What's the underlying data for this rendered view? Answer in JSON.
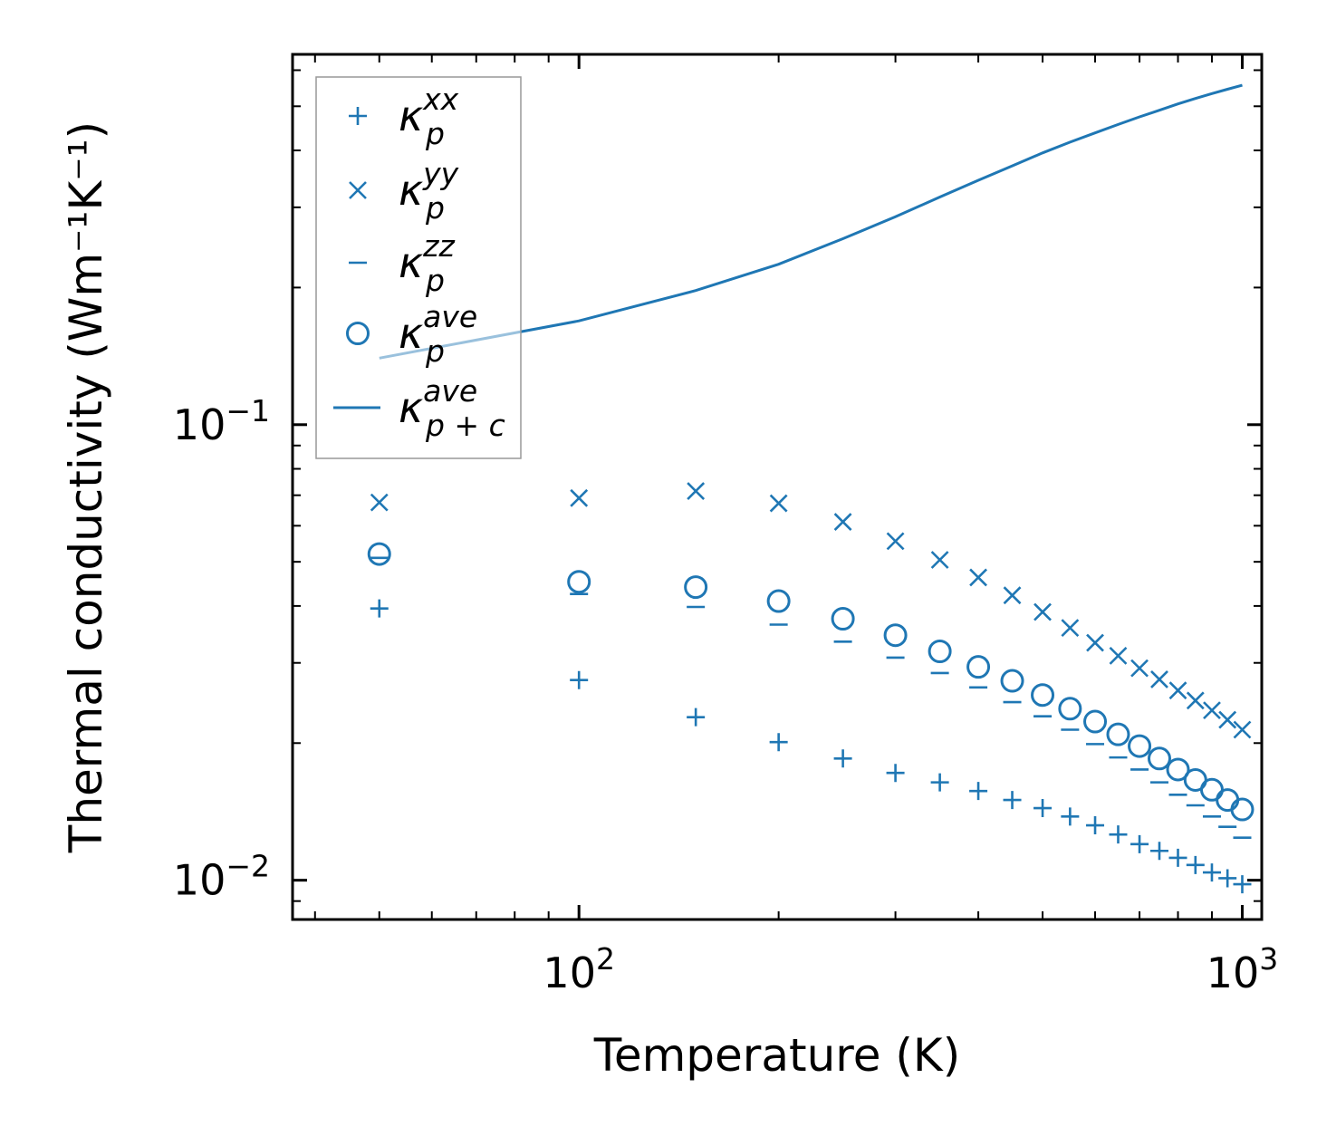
{
  "chart_data": {
    "type": "scatter",
    "title": "",
    "xlabel": "Temperature (K)",
    "ylabel": "Thermal conductivity (Wm⁻¹K⁻¹)",
    "xscale": "log",
    "yscale": "log",
    "xlim": [
      37,
      1070
    ],
    "ylim": [
      0.0082,
      0.65
    ],
    "grid": false,
    "legend_position": "top-left",
    "x_tick_labels": [
      {
        "value": 100,
        "base": "10",
        "exp": "2"
      },
      {
        "value": 1000,
        "base": "10",
        "exp": "3"
      }
    ],
    "y_tick_labels": [
      {
        "value": 0.1,
        "base": "10",
        "exp": "−1"
      },
      {
        "value": 0.01,
        "base": "10",
        "exp": "−2"
      }
    ],
    "x": [
      50,
      100,
      150,
      200,
      250,
      300,
      350,
      400,
      450,
      500,
      550,
      600,
      650,
      700,
      750,
      800,
      850,
      900,
      950,
      1000
    ],
    "series": [
      {
        "name": "kappa_p_xx",
        "legend_main": "κ",
        "legend_sub": "p",
        "legend_sup": "xx",
        "marker": "plus",
        "color": "#1f77b4",
        "values": [
          0.0395,
          0.0275,
          0.0228,
          0.0201,
          0.0185,
          0.0172,
          0.0164,
          0.0157,
          0.015,
          0.0144,
          0.0138,
          0.0132,
          0.0126,
          0.012,
          0.0116,
          0.0112,
          0.0108,
          0.0104,
          0.0101,
          0.0098
        ]
      },
      {
        "name": "kappa_p_yy",
        "legend_main": "κ",
        "legend_sub": "p",
        "legend_sup": "yy",
        "marker": "x",
        "color": "#1f77b4",
        "values": [
          0.0675,
          0.069,
          0.0715,
          0.0672,
          0.0612,
          0.0555,
          0.0505,
          0.0462,
          0.0422,
          0.0388,
          0.0358,
          0.0332,
          0.0311,
          0.0292,
          0.0276,
          0.0261,
          0.0248,
          0.0236,
          0.0225,
          0.0214
        ]
      },
      {
        "name": "kappa_p_zz",
        "legend_main": "κ",
        "legend_sub": "p",
        "legend_sup": "zz",
        "marker": "hline",
        "color": "#1f77b4",
        "values": [
          0.051,
          0.0425,
          0.0398,
          0.0364,
          0.0334,
          0.0308,
          0.0285,
          0.0265,
          0.0246,
          0.0229,
          0.0214,
          0.0199,
          0.0186,
          0.0175,
          0.0164,
          0.0154,
          0.0146,
          0.0138,
          0.0131,
          0.0124
        ]
      },
      {
        "name": "kappa_p_ave",
        "legend_main": "κ",
        "legend_sub": "p",
        "legend_sup": "ave",
        "marker": "circle",
        "color": "#1f77b4",
        "values": [
          0.052,
          0.0452,
          0.044,
          0.041,
          0.0375,
          0.0345,
          0.0318,
          0.0294,
          0.0274,
          0.0255,
          0.0238,
          0.0223,
          0.0209,
          0.0197,
          0.0185,
          0.0175,
          0.0166,
          0.0158,
          0.015,
          0.0143
        ]
      },
      {
        "name": "kappa_p+c_ave",
        "legend_main": "κ",
        "legend_sub": "p + c",
        "legend_sup": "ave",
        "marker": "line",
        "color": "#1f77b4",
        "x": [
          50,
          100,
          150,
          200,
          250,
          300,
          350,
          400,
          450,
          500,
          550,
          600,
          650,
          700,
          750,
          800,
          850,
          900,
          950,
          1000
        ],
        "values": [
          0.14,
          0.169,
          0.197,
          0.225,
          0.256,
          0.286,
          0.316,
          0.344,
          0.37,
          0.395,
          0.417,
          0.437,
          0.456,
          0.474,
          0.49,
          0.506,
          0.52,
          0.533,
          0.545,
          0.556
        ]
      }
    ]
  }
}
